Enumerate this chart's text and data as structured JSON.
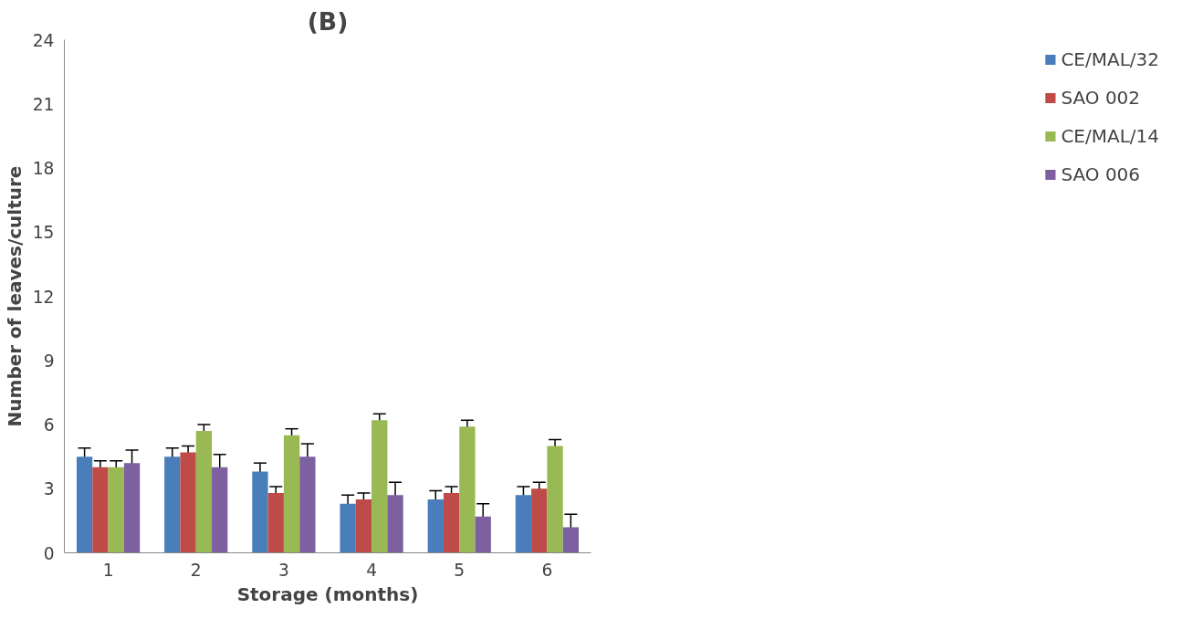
{
  "chart_data": {
    "type": "bar",
    "title": "(B)",
    "xlabel": "Storage (months)",
    "ylabel": "Number of leaves/culture",
    "categories": [
      "1",
      "2",
      "3",
      "4",
      "5",
      "6"
    ],
    "series": [
      {
        "name": "CE/MAL/32",
        "color": "#4a7ebb",
        "values": [
          4.5,
          4.5,
          3.8,
          2.3,
          2.5,
          2.7
        ],
        "errors": [
          0.4,
          0.4,
          0.4,
          0.4,
          0.4,
          0.4
        ]
      },
      {
        "name": "SAO 002",
        "color": "#be4b48",
        "values": [
          4.0,
          4.7,
          2.8,
          2.5,
          2.8,
          3.0
        ],
        "errors": [
          0.3,
          0.3,
          0.3,
          0.3,
          0.3,
          0.3
        ]
      },
      {
        "name": "CE/MAL/14",
        "color": "#98b954",
        "values": [
          4.0,
          5.7,
          5.5,
          6.2,
          5.9,
          5.0
        ],
        "errors": [
          0.3,
          0.3,
          0.3,
          0.3,
          0.3,
          0.3
        ]
      },
      {
        "name": "SAO 006",
        "color": "#7d60a0",
        "values": [
          4.2,
          4.0,
          4.5,
          2.7,
          1.7,
          1.2
        ],
        "errors": [
          0.6,
          0.6,
          0.6,
          0.6,
          0.6,
          0.6
        ]
      }
    ],
    "ylim": [
      0,
      24
    ],
    "yticks": [
      0,
      3,
      6,
      9,
      12,
      15,
      18,
      21,
      24
    ],
    "grid": false,
    "legend": "right"
  }
}
